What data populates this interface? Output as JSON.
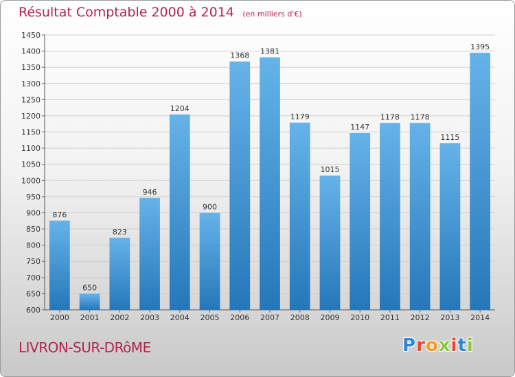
{
  "header": {
    "title": "Résultat Comptable 2000 à 2014",
    "subtitle": "(en milliers d'€)"
  },
  "footer": {
    "city": "LIVRON-SUR-DRôME",
    "logo_letters": [
      "P",
      "r",
      "o",
      "x",
      "i",
      "t",
      "i"
    ],
    "logo_colors": [
      "#2e88d0",
      "#e8442e",
      "#f39a1f",
      "#8cc63f",
      "#e8442e",
      "#2e88d0",
      "#8cc63f"
    ]
  },
  "colors": {
    "bar_light": "#66b3ea",
    "bar_dark": "#2577b9",
    "title": "#b3234a",
    "grid": "#cfcfcf"
  },
  "chart_data": {
    "type": "bar",
    "title": "Résultat Comptable 2000 à 2014",
    "subtitle": "(en milliers d'€)",
    "categories": [
      "2000",
      "2001",
      "2002",
      "2003",
      "2004",
      "2005",
      "2006",
      "2007",
      "2008",
      "2009",
      "2010",
      "2011",
      "2012",
      "2013",
      "2014"
    ],
    "values": [
      876,
      650,
      823,
      946,
      1204,
      900,
      1368,
      1381,
      1179,
      1015,
      1147,
      1178,
      1178,
      1115,
      1395
    ],
    "ylim": [
      600,
      1450
    ],
    "yticks": [
      600,
      650,
      700,
      750,
      800,
      850,
      900,
      950,
      1000,
      1050,
      1100,
      1150,
      1200,
      1250,
      1300,
      1350,
      1400,
      1450
    ],
    "grid": true,
    "data_labels": true
  }
}
